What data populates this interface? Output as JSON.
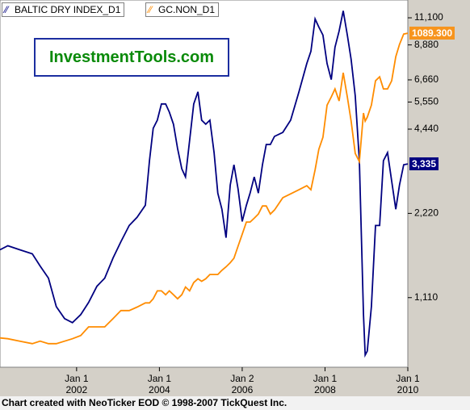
{
  "chart_data": {
    "type": "line",
    "ylog": true,
    "ylim": [
      626,
      12850
    ],
    "yticks": [
      {
        "value": 1110,
        "label": "1,110"
      },
      {
        "value": 2220,
        "label": "2,220"
      },
      {
        "value": 4440,
        "label": "4,440"
      },
      {
        "value": 5550,
        "label": "5,550"
      },
      {
        "value": 6660,
        "label": "6,660"
      },
      {
        "value": 8880,
        "label": "8,880"
      },
      {
        "value": 11100,
        "label": "11,100"
      }
    ],
    "y2log": true,
    "y2lim": [
      238,
      1267
    ],
    "xlim": [
      2000.15,
      2010.0
    ],
    "xticks": [
      {
        "value": 2002,
        "label": "Jan 1\n2002"
      },
      {
        "value": 2004,
        "label": "Jan 1\n2004"
      },
      {
        "value": 2006,
        "label": "Jan 2\n2006"
      },
      {
        "value": 2008,
        "label": "Jan 1\n2008"
      },
      {
        "value": 2010,
        "label": "Jan 1\n2010"
      }
    ],
    "watermark": "InvestmentTools.com",
    "footer": "Chart created with NeoTicker EOD © 1998-2007 TickQuest Inc.",
    "x": [
      2000.15,
      2000.34,
      2000.63,
      2000.93,
      2001.12,
      2001.32,
      2001.51,
      2001.71,
      2001.9,
      2002.1,
      2002.29,
      2002.49,
      2002.68,
      2002.88,
      2003.07,
      2003.27,
      2003.46,
      2003.66,
      2003.76,
      2003.85,
      2003.95,
      2004.05,
      2004.15,
      2004.24,
      2004.34,
      2004.44,
      2004.54,
      2004.63,
      2004.73,
      2004.83,
      2004.93,
      2005.02,
      2005.12,
      2005.22,
      2005.32,
      2005.41,
      2005.51,
      2005.61,
      2005.71,
      2005.8,
      2005.9,
      2006.0,
      2006.1,
      2006.19,
      2006.29,
      2006.39,
      2006.49,
      2006.58,
      2006.68,
      2006.78,
      2006.98,
      2007.17,
      2007.37,
      2007.56,
      2007.66,
      2007.76,
      2007.85,
      2007.95,
      2008.05,
      2008.15,
      2008.24,
      2008.34,
      2008.44,
      2008.54,
      2008.63,
      2008.73,
      2008.83,
      2008.93,
      2008.97,
      2009.02,
      2009.12,
      2009.22,
      2009.32,
      2009.41,
      2009.51,
      2009.61,
      2009.71,
      2009.8,
      2009.9,
      2010.0
    ],
    "series": [
      {
        "name": "BALTIC DRY INDEX_D1",
        "color": "#000080",
        "last_label": "3,335",
        "values": [
          1645,
          1701,
          1645,
          1591,
          1440,
          1303,
          1031,
          934,
          903,
          965,
          1066,
          1219,
          1303,
          1539,
          1758,
          2009,
          2148,
          2374,
          3425,
          4471,
          4780,
          5461,
          5461,
          5109,
          4623,
          3785,
          3204,
          2997,
          4046,
          5461,
          6035,
          4780,
          4623,
          4780,
          3661,
          2623,
          2296,
          1818,
          2804,
          3313,
          2712,
          2077,
          2374,
          2623,
          2997,
          2623,
          3313,
          3913,
          3913,
          4183,
          4325,
          4780,
          6035,
          7621,
          8425,
          10990,
          10290,
          9624,
          7621,
          6670,
          8711,
          9946,
          11755,
          9624,
          7881,
          5838,
          3425,
          965,
          692,
          715,
          1031,
          2009,
          2009,
          3425,
          3661,
          2899,
          2296,
          2804,
          3313,
          3335
        ]
      },
      {
        "name": "GC.NON_D1",
        "color": "#ff8c00",
        "axis": "y2",
        "last_label": "1089.300",
        "values": [
          272,
          271,
          268,
          265,
          268,
          265,
          265,
          268,
          271,
          275,
          286,
          286,
          286,
          297,
          308,
          308,
          313,
          319,
          319,
          325,
          337,
          337,
          331,
          337,
          331,
          325,
          331,
          343,
          337,
          350,
          356,
          352,
          356,
          363,
          363,
          363,
          370,
          376,
          383,
          391,
          413,
          436,
          461,
          461,
          469,
          478,
          496,
          496,
          478,
          487,
          515,
          524,
          534,
          544,
          534,
          585,
          642,
          678,
          785,
          815,
          845,
          800,
          910,
          815,
          730,
          630,
          607,
          757,
          730,
          743,
          785,
          877,
          893,
          845,
          845,
          877,
          979,
          1035,
          1085,
          1089.3
        ]
      }
    ]
  }
}
